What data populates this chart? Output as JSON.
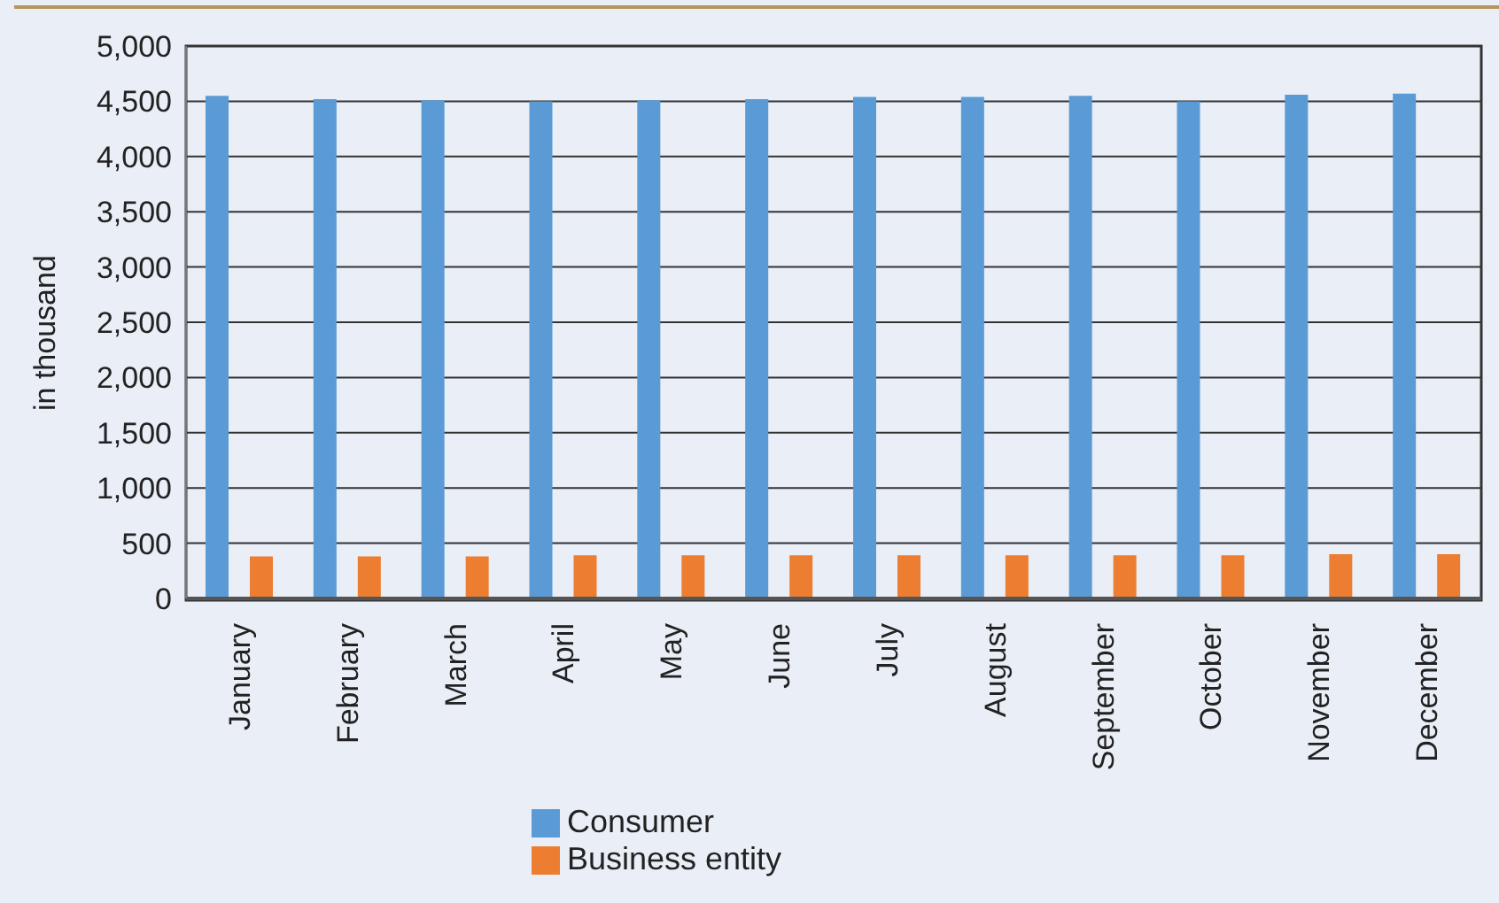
{
  "chart_data": {
    "type": "bar",
    "ylabel": "in thousand",
    "categories": [
      "January",
      "February",
      "March",
      "April",
      "May",
      "June",
      "July",
      "August",
      "September",
      "October",
      "November",
      "December"
    ],
    "series": [
      {
        "name": "Consumer",
        "color": "#5b9bd5",
        "values": [
          4550,
          4520,
          4510,
          4500,
          4510,
          4520,
          4540,
          4540,
          4550,
          4500,
          4560,
          4570
        ]
      },
      {
        "name": "Business entity",
        "color": "#ed7d31",
        "values": [
          380,
          380,
          380,
          390,
          390,
          390,
          390,
          390,
          390,
          390,
          400,
          400
        ]
      }
    ],
    "ylim": [
      0,
      5000
    ],
    "yticks": [
      {
        "value": 0,
        "label": "0"
      },
      {
        "value": 500,
        "label": "500"
      },
      {
        "value": 1000,
        "label": "1,000"
      },
      {
        "value": 1500,
        "label": "1,500"
      },
      {
        "value": 2000,
        "label": "2,000"
      },
      {
        "value": 2500,
        "label": "2,500"
      },
      {
        "value": 3000,
        "label": "3,000"
      },
      {
        "value": 3500,
        "label": "3,500"
      },
      {
        "value": 4000,
        "label": "4,000"
      },
      {
        "value": 4500,
        "label": "4,500"
      },
      {
        "value": 5000,
        "label": "5,000"
      }
    ],
    "grid": "y",
    "legend": "bottom"
  }
}
